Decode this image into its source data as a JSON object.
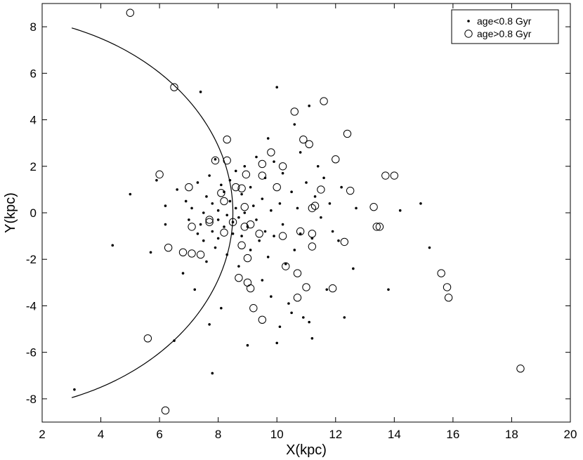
{
  "chart_data": {
    "type": "scatter",
    "title": "",
    "xlabel": "X(kpc)",
    "ylabel": "Y(kpc)",
    "xlim": [
      2,
      20
    ],
    "ylim": [
      -9,
      9
    ],
    "xticks": [
      2,
      4,
      6,
      8,
      10,
      12,
      14,
      16,
      18,
      20
    ],
    "yticks": [
      -8,
      -6,
      -4,
      -2,
      0,
      2,
      4,
      6,
      8
    ],
    "grid": false,
    "legend_position": "top-right",
    "curve": {
      "type": "circle-arc",
      "center": [
        0,
        0
      ],
      "radius": 8.5,
      "y_range": [
        -7.95,
        7.95
      ]
    },
    "series": [
      {
        "name": "age<0.8 Gyr",
        "marker": "dot",
        "color": "#000000",
        "points": [
          [
            3.1,
            -7.6
          ],
          [
            4.4,
            -1.4
          ],
          [
            5.0,
            0.8
          ],
          [
            5.7,
            -1.7
          ],
          [
            5.9,
            1.4
          ],
          [
            6.2,
            -0.5
          ],
          [
            6.2,
            0.3
          ],
          [
            6.5,
            -5.5
          ],
          [
            6.6,
            1.0
          ],
          [
            6.8,
            -2.6
          ],
          [
            6.9,
            0.5
          ],
          [
            7.0,
            -0.3
          ],
          [
            7.1,
            0.2
          ],
          [
            7.2,
            -3.3
          ],
          [
            7.3,
            -0.9
          ],
          [
            7.3,
            1.3
          ],
          [
            7.4,
            5.2
          ],
          [
            7.4,
            -0.5
          ],
          [
            7.5,
            0.0
          ],
          [
            7.5,
            -1.2
          ],
          [
            7.6,
            0.7
          ],
          [
            7.6,
            -2.1
          ],
          [
            7.7,
            -4.8
          ],
          [
            7.7,
            1.6
          ],
          [
            7.8,
            -0.8
          ],
          [
            7.8,
            0.4
          ],
          [
            7.8,
            -6.9
          ],
          [
            7.9,
            -1.5
          ],
          [
            7.9,
            2.3
          ],
          [
            8.0,
            0.1
          ],
          [
            8.0,
            -0.3
          ],
          [
            8.0,
            -1.1
          ],
          [
            8.1,
            1.2
          ],
          [
            8.1,
            -4.1
          ],
          [
            8.2,
            -0.6
          ],
          [
            8.2,
            0.9
          ],
          [
            8.3,
            -1.8
          ],
          [
            8.3,
            -0.1
          ],
          [
            8.4,
            0.5
          ],
          [
            8.4,
            1.4
          ],
          [
            8.5,
            -0.4
          ],
          [
            8.5,
            -0.9
          ],
          [
            8.6,
            0.2
          ],
          [
            8.6,
            1.8
          ],
          [
            8.7,
            -2.3
          ],
          [
            8.7,
            -0.2
          ],
          [
            8.8,
            0.8
          ],
          [
            8.8,
            -1.0
          ],
          [
            8.9,
            0.0
          ],
          [
            8.9,
            2.0
          ],
          [
            9.0,
            -0.6
          ],
          [
            9.0,
            -5.7
          ],
          [
            9.1,
            1.1
          ],
          [
            9.1,
            -1.6
          ],
          [
            9.2,
            0.3
          ],
          [
            9.3,
            -0.3
          ],
          [
            9.3,
            2.4
          ],
          [
            9.4,
            -1.2
          ],
          [
            9.5,
            0.6
          ],
          [
            9.5,
            -2.9
          ],
          [
            9.6,
            1.5
          ],
          [
            9.6,
            -0.8
          ],
          [
            9.7,
            -1.9
          ],
          [
            9.7,
            3.2
          ],
          [
            9.8,
            0.1
          ],
          [
            9.8,
            -3.6
          ],
          [
            9.9,
            2.2
          ],
          [
            9.9,
            -1.0
          ],
          [
            10.0,
            5.4
          ],
          [
            10.0,
            -5.6
          ],
          [
            10.1,
            0.4
          ],
          [
            10.1,
            -4.9
          ],
          [
            10.2,
            1.7
          ],
          [
            10.2,
            -0.5
          ],
          [
            10.3,
            -2.2
          ],
          [
            10.4,
            -3.9
          ],
          [
            10.5,
            0.9
          ],
          [
            10.5,
            -4.3
          ],
          [
            10.6,
            3.8
          ],
          [
            10.6,
            -1.6
          ],
          [
            10.7,
            0.2
          ],
          [
            10.8,
            2.6
          ],
          [
            10.8,
            -0.9
          ],
          [
            10.9,
            -4.5
          ],
          [
            11.0,
            1.3
          ],
          [
            11.1,
            -4.7
          ],
          [
            11.1,
            4.6
          ],
          [
            11.2,
            -5.4
          ],
          [
            11.2,
            -1.1
          ],
          [
            11.3,
            0.7
          ],
          [
            11.4,
            2.0
          ],
          [
            11.5,
            -0.2
          ],
          [
            11.6,
            1.5
          ],
          [
            11.7,
            -3.3
          ],
          [
            11.8,
            0.4
          ],
          [
            11.9,
            -0.8
          ],
          [
            12.1,
            -1.2
          ],
          [
            12.2,
            1.1
          ],
          [
            12.3,
            -4.5
          ],
          [
            12.6,
            -2.4
          ],
          [
            12.7,
            0.2
          ],
          [
            13.8,
            -3.3
          ],
          [
            14.2,
            0.1
          ],
          [
            14.9,
            0.4
          ],
          [
            15.2,
            -1.5
          ]
        ]
      },
      {
        "name": "age>0.8 Gyr",
        "marker": "open-circle",
        "color": "#000000",
        "points": [
          [
            5.0,
            8.6
          ],
          [
            5.6,
            -5.4
          ],
          [
            6.0,
            1.65
          ],
          [
            6.2,
            -8.5
          ],
          [
            6.3,
            -1.5
          ],
          [
            6.5,
            5.4
          ],
          [
            6.8,
            -1.7
          ],
          [
            7.0,
            1.1
          ],
          [
            7.1,
            -0.6
          ],
          [
            7.1,
            -1.75
          ],
          [
            7.4,
            -1.8
          ],
          [
            7.7,
            -0.4
          ],
          [
            7.7,
            -0.3
          ],
          [
            7.9,
            2.25
          ],
          [
            8.1,
            0.85
          ],
          [
            8.2,
            -0.85
          ],
          [
            8.2,
            0.5
          ],
          [
            8.3,
            3.15
          ],
          [
            8.3,
            2.25
          ],
          [
            8.5,
            -0.4
          ],
          [
            8.6,
            1.1
          ],
          [
            8.7,
            -2.8
          ],
          [
            8.8,
            -1.4
          ],
          [
            8.8,
            1.05
          ],
          [
            8.9,
            -0.6
          ],
          [
            8.9,
            0.25
          ],
          [
            8.95,
            1.65
          ],
          [
            9.0,
            -3.0
          ],
          [
            9.0,
            -1.95
          ],
          [
            9.1,
            -0.5
          ],
          [
            9.1,
            -3.25
          ],
          [
            9.2,
            -4.1
          ],
          [
            9.4,
            -0.9
          ],
          [
            9.5,
            -4.6
          ],
          [
            9.5,
            2.1
          ],
          [
            9.5,
            1.6
          ],
          [
            9.8,
            2.6
          ],
          [
            10.0,
            1.1
          ],
          [
            10.2,
            -1.0
          ],
          [
            10.2,
            2.0
          ],
          [
            10.3,
            -2.3
          ],
          [
            10.6,
            4.35
          ],
          [
            10.7,
            -3.65
          ],
          [
            10.7,
            -2.6
          ],
          [
            10.8,
            -0.8
          ],
          [
            10.9,
            3.15
          ],
          [
            11.0,
            -3.2
          ],
          [
            11.1,
            2.95
          ],
          [
            11.2,
            0.2
          ],
          [
            11.2,
            -1.45
          ],
          [
            11.2,
            -0.9
          ],
          [
            11.3,
            0.3
          ],
          [
            11.5,
            1.0
          ],
          [
            11.6,
            4.8
          ],
          [
            11.9,
            -3.25
          ],
          [
            12.0,
            2.3
          ],
          [
            12.3,
            -1.25
          ],
          [
            12.4,
            3.4
          ],
          [
            12.5,
            0.95
          ],
          [
            13.3,
            0.25
          ],
          [
            13.4,
            -0.6
          ],
          [
            13.5,
            -0.6
          ],
          [
            13.7,
            1.6
          ],
          [
            14.0,
            1.6
          ],
          [
            15.6,
            -2.6
          ],
          [
            15.8,
            -3.2
          ],
          [
            15.85,
            -3.65
          ],
          [
            18.3,
            -6.7
          ]
        ]
      }
    ]
  }
}
